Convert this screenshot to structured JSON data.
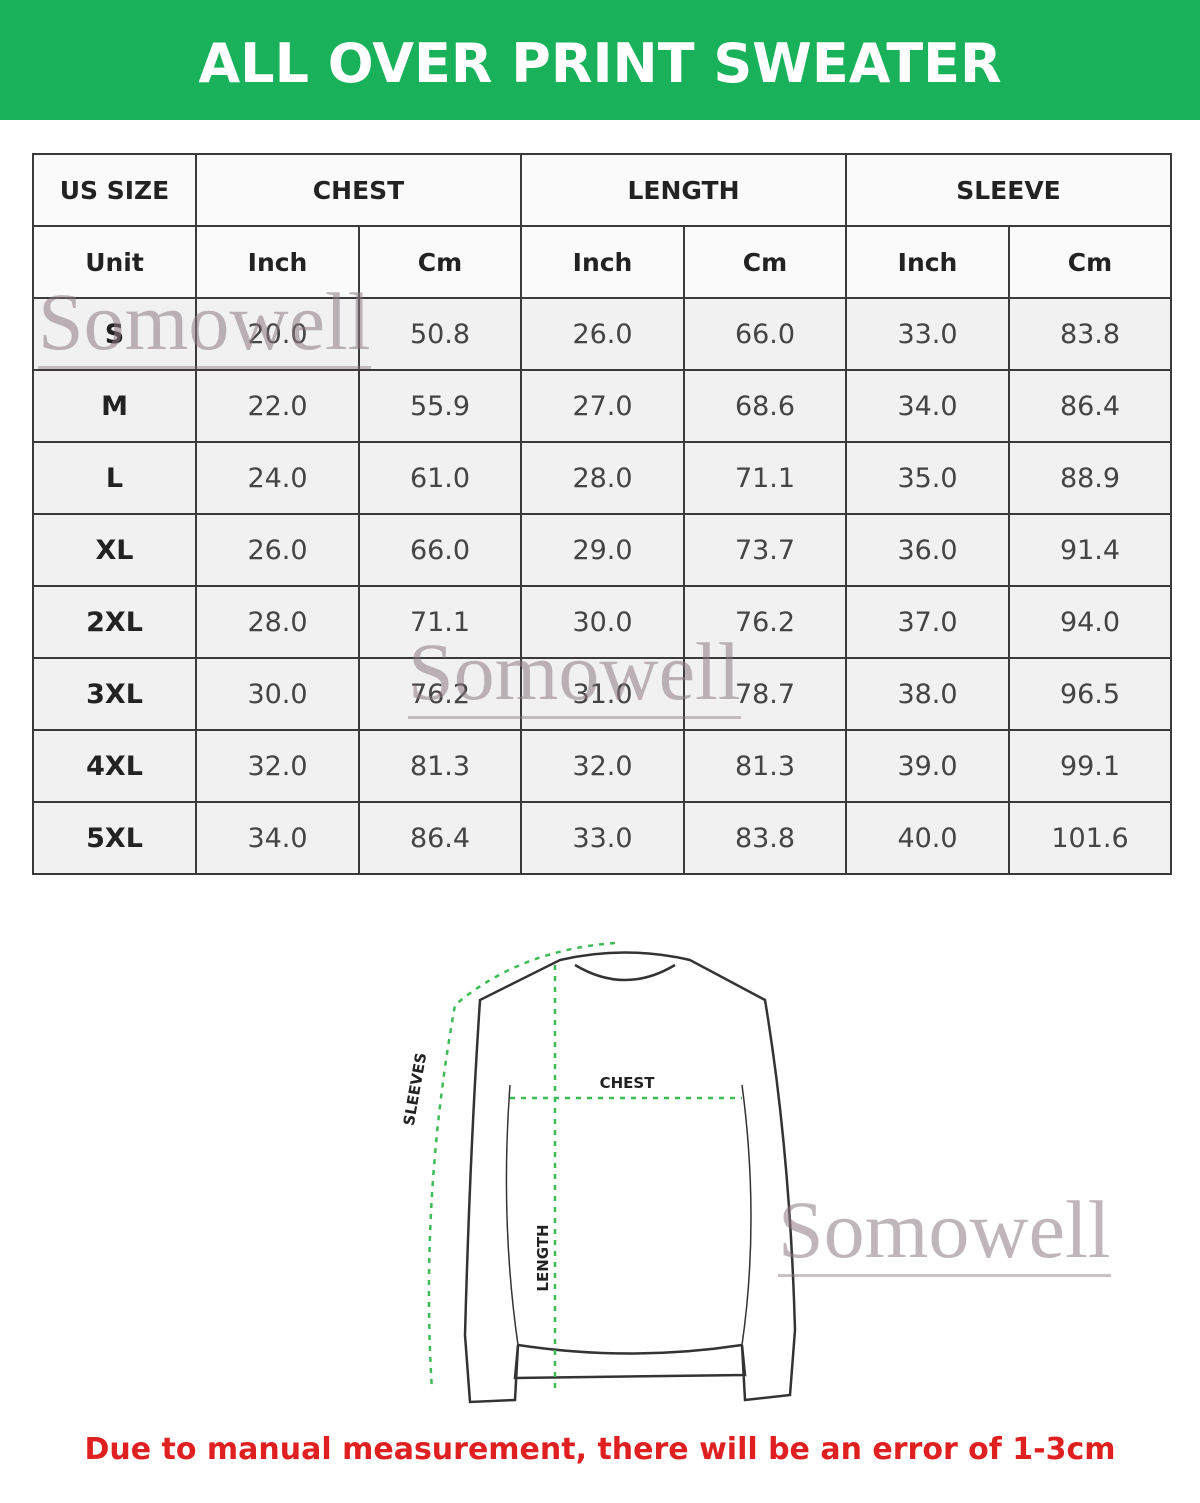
{
  "header": {
    "title": "ALL OVER PRINT SWEATER"
  },
  "table": {
    "groups": [
      "US SIZE",
      "CHEST",
      "LENGTH",
      "SLEEVE"
    ],
    "units": [
      "Unit",
      "Inch",
      "Cm",
      "Inch",
      "Cm",
      "Inch",
      "Cm"
    ],
    "rows": [
      [
        "S",
        "20.0",
        "50.8",
        "26.0",
        "66.0",
        "33.0",
        "83.8"
      ],
      [
        "M",
        "22.0",
        "55.9",
        "27.0",
        "68.6",
        "34.0",
        "86.4"
      ],
      [
        "L",
        "24.0",
        "61.0",
        "28.0",
        "71.1",
        "35.0",
        "88.9"
      ],
      [
        "XL",
        "26.0",
        "66.0",
        "29.0",
        "73.7",
        "36.0",
        "91.4"
      ],
      [
        "2XL",
        "28.0",
        "71.1",
        "30.0",
        "76.2",
        "37.0",
        "94.0"
      ],
      [
        "3XL",
        "30.0",
        "76.2",
        "31.0",
        "78.7",
        "38.0",
        "96.5"
      ],
      [
        "4XL",
        "32.0",
        "81.3",
        "32.0",
        "81.3",
        "39.0",
        "99.1"
      ],
      [
        "5XL",
        "34.0",
        "86.4",
        "33.0",
        "83.8",
        "40.0",
        "101.6"
      ]
    ]
  },
  "diagram": {
    "chest": "CHEST",
    "sleeves": "SLEEVES",
    "length": "LENGTH"
  },
  "watermarks": [
    "Somowell",
    "Somowell",
    "Somowell"
  ],
  "note": "Due to manual measurement, there will be an error of 1-3cm"
}
